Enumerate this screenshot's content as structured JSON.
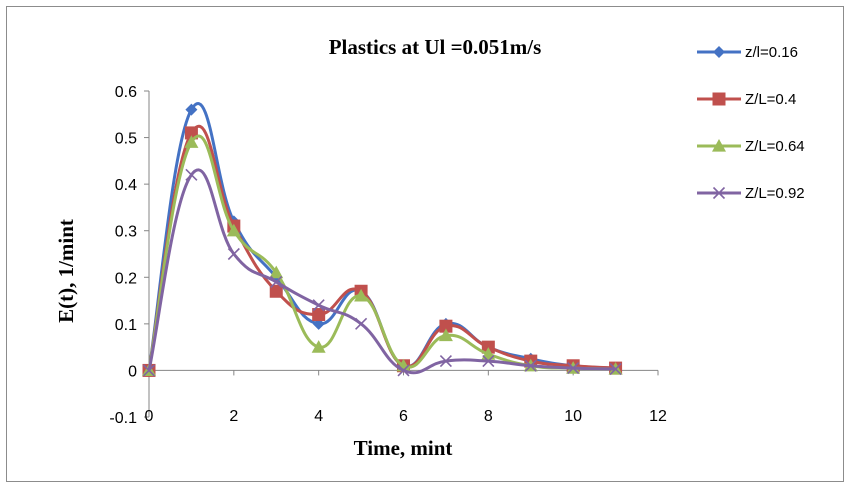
{
  "chart_data": {
    "type": "line",
    "title": "Plastics at Ul =0.051m/s",
    "xlabel": "Time, mint",
    "ylabel": "E(t), 1/mint",
    "xlim": [
      0,
      12
    ],
    "ylim": [
      -0.1,
      0.6
    ],
    "x_ticks": [
      "0",
      "2",
      "4",
      "6",
      "8",
      "10",
      "12"
    ],
    "y_ticks": [
      "-0.1",
      "0",
      "0.1",
      "0.2",
      "0.3",
      "0.4",
      "0.5",
      "0.6"
    ],
    "grid": false,
    "legend_position": "right",
    "smooth": true,
    "series": [
      {
        "name": "z/l=0.16",
        "color": "#4472C4",
        "marker": "diamond",
        "x": [
          0,
          1,
          2,
          3,
          4,
          5,
          6,
          7,
          8,
          9,
          10,
          11
        ],
        "y": [
          0,
          0.56,
          0.32,
          0.2,
          0.1,
          0.17,
          0.01,
          0.1,
          0.05,
          0.025,
          0.01,
          0.005
        ]
      },
      {
        "name": "Z/L=0.4",
        "color": "#C0504D",
        "marker": "square",
        "x": [
          0,
          1,
          2,
          3,
          4,
          5,
          6,
          7,
          8,
          9,
          10,
          11
        ],
        "y": [
          0,
          0.51,
          0.31,
          0.17,
          0.12,
          0.17,
          0.01,
          0.095,
          0.05,
          0.02,
          0.01,
          0.005
        ]
      },
      {
        "name": "Z/L=0.64",
        "color": "#9BBB59",
        "marker": "triangle",
        "x": [
          0,
          1,
          2,
          3,
          4,
          5,
          6,
          7,
          8,
          9,
          10,
          11
        ],
        "y": [
          0,
          0.49,
          0.3,
          0.21,
          0.05,
          0.16,
          0.01,
          0.075,
          0.035,
          0.01,
          0.005,
          0.003
        ]
      },
      {
        "name": "Z/L=0.92",
        "color": "#8064A2",
        "marker": "x",
        "x": [
          0,
          1,
          2,
          3,
          4,
          5,
          6,
          7,
          8,
          9,
          10,
          11
        ],
        "y": [
          0,
          0.42,
          0.25,
          0.19,
          0.14,
          0.1,
          0.0,
          0.02,
          0.02,
          0.01,
          0.005,
          0.003
        ]
      }
    ]
  }
}
